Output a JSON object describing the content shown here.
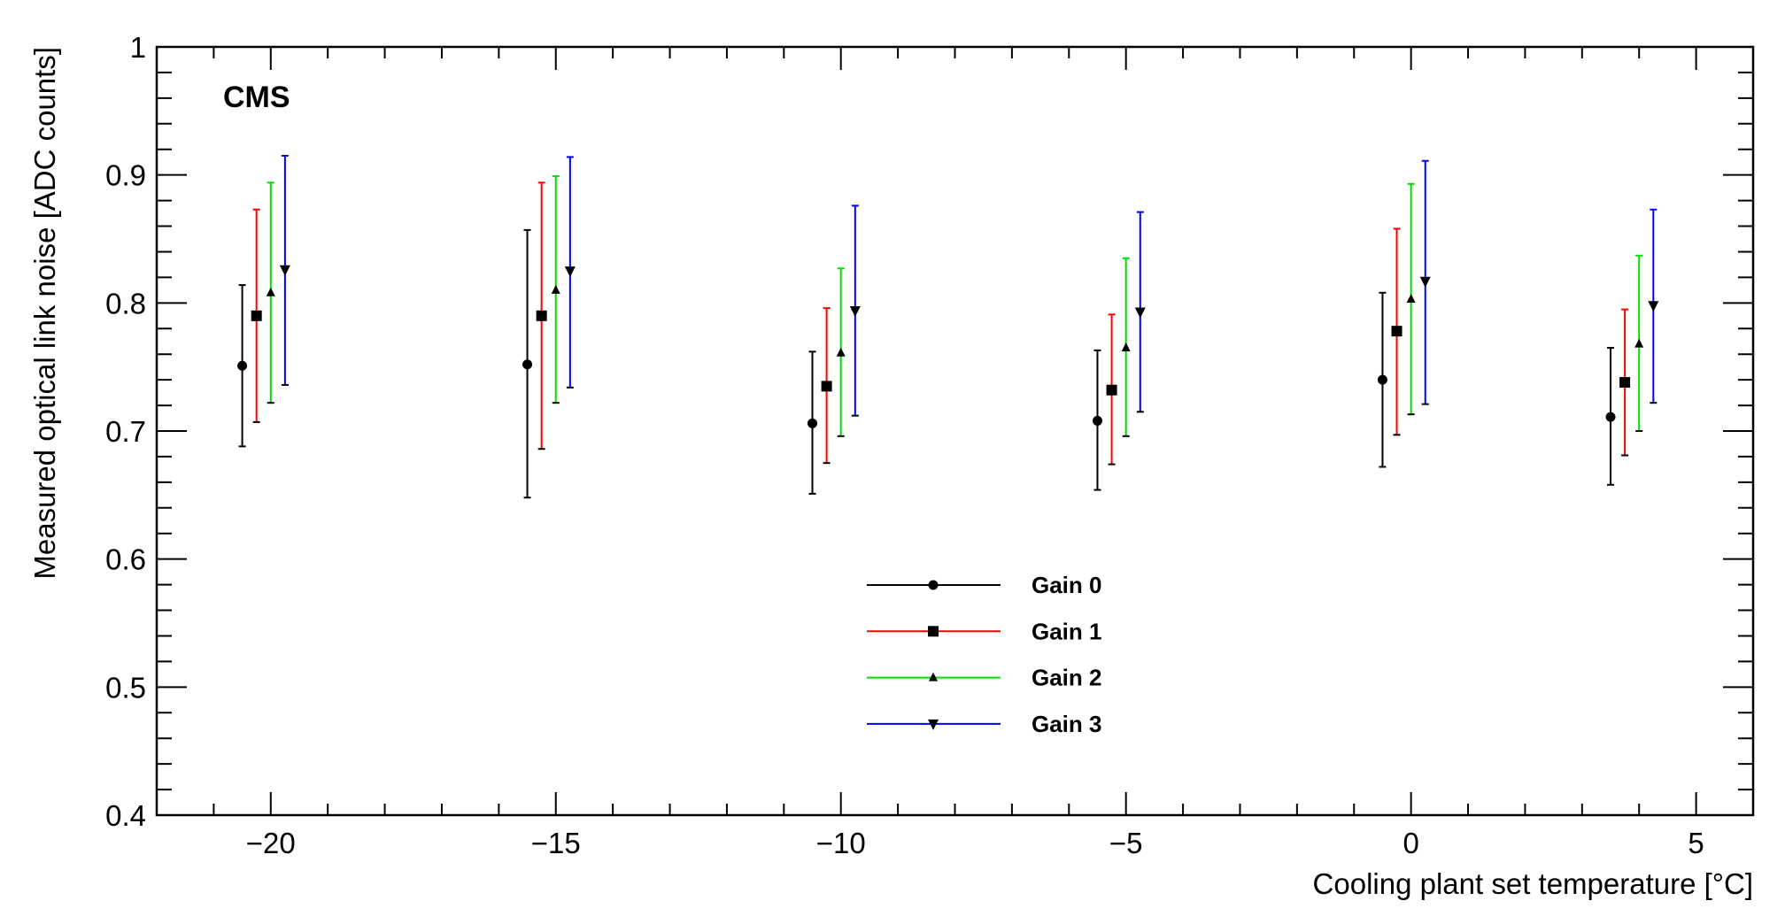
{
  "chart_data": {
    "type": "scatter",
    "experiment_label": "CMS",
    "xlabel": "Cooling plant set temperature [°C]",
    "ylabel": "Measured optical link noise [ADC counts]",
    "xlim": [
      -22,
      6
    ],
    "ylim": [
      0.4,
      1.0
    ],
    "x_ticks": [
      -20,
      -15,
      -10,
      -5,
      0,
      5
    ],
    "x_tick_labels": [
      "−20",
      "−15",
      "−10",
      "−5",
      "0",
      "5"
    ],
    "y_ticks": [
      0.4,
      0.5,
      0.6,
      0.7,
      0.8,
      0.9,
      1.0
    ],
    "y_tick_labels": [
      "0.4",
      "0.5",
      "0.6",
      "0.7",
      "0.8",
      "0.9",
      "1"
    ],
    "grid": false,
    "legend_position": "bottom-center",
    "series": [
      {
        "name": "Gain 0",
        "color": "#000000",
        "marker": "circle",
        "points": [
          {
            "x": -20.5,
            "y": 0.751,
            "ylow": 0.688,
            "yhigh": 0.814
          },
          {
            "x": -15.5,
            "y": 0.752,
            "ylow": 0.648,
            "yhigh": 0.857
          },
          {
            "x": -10.5,
            "y": 0.706,
            "ylow": 0.651,
            "yhigh": 0.762
          },
          {
            "x": -5.5,
            "y": 0.708,
            "ylow": 0.654,
            "yhigh": 0.763
          },
          {
            "x": -0.5,
            "y": 0.74,
            "ylow": 0.672,
            "yhigh": 0.808
          },
          {
            "x": 3.5,
            "y": 0.711,
            "ylow": 0.658,
            "yhigh": 0.765
          }
        ]
      },
      {
        "name": "Gain 1",
        "color": "#ff0000",
        "marker": "square",
        "points": [
          {
            "x": -20.25,
            "y": 0.79,
            "ylow": 0.707,
            "yhigh": 0.873
          },
          {
            "x": -15.25,
            "y": 0.79,
            "ylow": 0.686,
            "yhigh": 0.894
          },
          {
            "x": -10.25,
            "y": 0.735,
            "ylow": 0.675,
            "yhigh": 0.796
          },
          {
            "x": -5.25,
            "y": 0.732,
            "ylow": 0.674,
            "yhigh": 0.791
          },
          {
            "x": -0.25,
            "y": 0.778,
            "ylow": 0.697,
            "yhigh": 0.858
          },
          {
            "x": 3.75,
            "y": 0.738,
            "ylow": 0.681,
            "yhigh": 0.795
          }
        ]
      },
      {
        "name": "Gain 2",
        "color": "#00dd00",
        "marker": "triangle-up",
        "points": [
          {
            "x": -20.0,
            "y": 0.808,
            "ylow": 0.722,
            "yhigh": 0.894
          },
          {
            "x": -15.0,
            "y": 0.81,
            "ylow": 0.722,
            "yhigh": 0.899
          },
          {
            "x": -10.0,
            "y": 0.761,
            "ylow": 0.696,
            "yhigh": 0.827
          },
          {
            "x": -5.0,
            "y": 0.765,
            "ylow": 0.696,
            "yhigh": 0.835
          },
          {
            "x": 0.0,
            "y": 0.803,
            "ylow": 0.713,
            "yhigh": 0.893
          },
          {
            "x": 4.0,
            "y": 0.768,
            "ylow": 0.7,
            "yhigh": 0.837
          }
        ]
      },
      {
        "name": "Gain 3",
        "color": "#0000ff",
        "marker": "triangle-down",
        "points": [
          {
            "x": -19.75,
            "y": 0.826,
            "ylow": 0.736,
            "yhigh": 0.915
          },
          {
            "x": -14.75,
            "y": 0.825,
            "ylow": 0.734,
            "yhigh": 0.914
          },
          {
            "x": -9.75,
            "y": 0.794,
            "ylow": 0.712,
            "yhigh": 0.876
          },
          {
            "x": -4.75,
            "y": 0.793,
            "ylow": 0.715,
            "yhigh": 0.871
          },
          {
            "x": 0.25,
            "y": 0.817,
            "ylow": 0.721,
            "yhigh": 0.911
          },
          {
            "x": 4.25,
            "y": 0.798,
            "ylow": 0.722,
            "yhigh": 0.873
          }
        ]
      }
    ]
  }
}
